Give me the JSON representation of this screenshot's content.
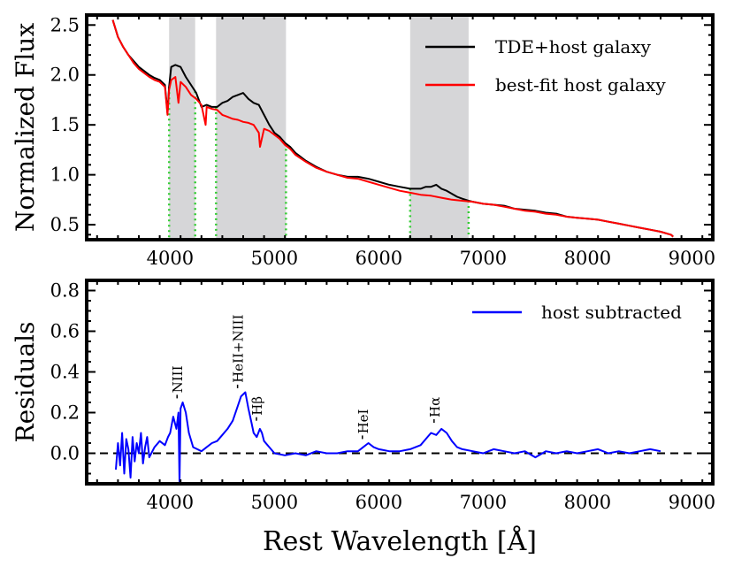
{
  "chart_data": [
    {
      "type": "line",
      "panel": "top",
      "title": "",
      "xlabel": "",
      "ylabel": "Normalized Flux",
      "xlim": [
        3200,
        9200
      ],
      "ylim": [
        0.35,
        2.6
      ],
      "xticks": [
        4000,
        5000,
        6000,
        7000,
        8000,
        9000
      ],
      "xtick_labels": [
        "4000",
        "5000",
        "6000",
        "7000",
        "8000",
        "9000"
      ],
      "yticks": [
        0.5,
        1.0,
        1.5,
        2.0,
        2.5
      ],
      "ytick_labels": [
        "0.5",
        "1.0",
        "1.5",
        "2.0",
        "2.5"
      ],
      "legend_position": "top-right",
      "shaded_regions": [
        {
          "x0": 3990,
          "x1": 4240
        },
        {
          "x0": 4440,
          "x1": 5110
        },
        {
          "x0": 6300,
          "x1": 6860
        }
      ],
      "series": [
        {
          "name": "TDE+host galaxy",
          "color": "#000000",
          "x": [
            3450,
            3500,
            3550,
            3600,
            3650,
            3700,
            3750,
            3800,
            3850,
            3900,
            3950,
            3975,
            3990,
            4010,
            4050,
            4100,
            4150,
            4200,
            4250,
            4300,
            4350,
            4400,
            4450,
            4500,
            4550,
            4600,
            4650,
            4700,
            4750,
            4800,
            4850,
            4900,
            4950,
            5000,
            5050,
            5100,
            5150,
            5200,
            5300,
            5400,
            5500,
            5600,
            5700,
            5800,
            5900,
            6000,
            6100,
            6200,
            6300,
            6400,
            6450,
            6500,
            6550,
            6600,
            6650,
            6700,
            6750,
            6800,
            6860,
            6900,
            7000,
            7100,
            7200,
            7300,
            7400,
            7500,
            7600,
            7700,
            7800,
            7900,
            8000,
            8100,
            8200,
            8300,
            8400,
            8500,
            8600,
            8700,
            8800,
            8820
          ],
          "y": [
            2.55,
            2.38,
            2.28,
            2.2,
            2.14,
            2.08,
            2.04,
            2.0,
            1.97,
            1.95,
            1.9,
            1.62,
            1.88,
            2.08,
            2.1,
            2.08,
            1.98,
            1.9,
            1.82,
            1.68,
            1.7,
            1.68,
            1.68,
            1.72,
            1.74,
            1.78,
            1.8,
            1.82,
            1.76,
            1.72,
            1.7,
            1.6,
            1.5,
            1.42,
            1.38,
            1.32,
            1.28,
            1.22,
            1.14,
            1.08,
            1.03,
            1.0,
            0.98,
            0.98,
            0.96,
            0.93,
            0.9,
            0.88,
            0.86,
            0.86,
            0.88,
            0.88,
            0.9,
            0.86,
            0.84,
            0.81,
            0.78,
            0.76,
            0.74,
            0.73,
            0.71,
            0.7,
            0.69,
            0.66,
            0.65,
            0.64,
            0.62,
            0.61,
            0.58,
            0.57,
            0.56,
            0.55,
            0.53,
            0.51,
            0.49,
            0.47,
            0.45,
            0.43,
            0.4,
            0.38
          ]
        },
        {
          "name": "best-fit host galaxy",
          "color": "#ff0000",
          "x": [
            3450,
            3500,
            3550,
            3600,
            3650,
            3700,
            3750,
            3800,
            3850,
            3900,
            3950,
            3975,
            3990,
            4010,
            4050,
            4080,
            4100,
            4150,
            4200,
            4250,
            4300,
            4340,
            4350,
            4400,
            4450,
            4500,
            4550,
            4600,
            4650,
            4700,
            4750,
            4800,
            4850,
            4861,
            4900,
            4950,
            5000,
            5050,
            5100,
            5150,
            5200,
            5300,
            5400,
            5500,
            5600,
            5700,
            5800,
            5900,
            6000,
            6100,
            6200,
            6300,
            6400,
            6500,
            6600,
            6700,
            6800,
            6900,
            7000,
            7100,
            7200,
            7300,
            7400,
            7500,
            7600,
            7700,
            7800,
            7900,
            8000,
            8100,
            8200,
            8300,
            8400,
            8500,
            8600,
            8700,
            8800,
            8820
          ],
          "y": [
            2.55,
            2.38,
            2.28,
            2.2,
            2.12,
            2.06,
            2.02,
            1.98,
            1.95,
            1.93,
            1.88,
            1.6,
            1.85,
            1.95,
            1.98,
            1.72,
            1.93,
            1.88,
            1.8,
            1.76,
            1.7,
            1.5,
            1.68,
            1.66,
            1.65,
            1.6,
            1.58,
            1.56,
            1.55,
            1.53,
            1.52,
            1.5,
            1.42,
            1.28,
            1.46,
            1.44,
            1.4,
            1.36,
            1.3,
            1.26,
            1.2,
            1.13,
            1.07,
            1.03,
            1.0,
            0.97,
            0.96,
            0.93,
            0.9,
            0.87,
            0.84,
            0.82,
            0.8,
            0.79,
            0.77,
            0.75,
            0.74,
            0.73,
            0.71,
            0.7,
            0.68,
            0.66,
            0.64,
            0.63,
            0.61,
            0.6,
            0.58,
            0.57,
            0.56,
            0.55,
            0.53,
            0.51,
            0.49,
            0.47,
            0.45,
            0.43,
            0.4,
            0.38
          ]
        }
      ]
    },
    {
      "type": "line",
      "panel": "bottom",
      "title": "",
      "xlabel": "Rest Wavelength [Å]",
      "ylabel": "Residuals",
      "xlim": [
        3200,
        9200
      ],
      "ylim": [
        -0.15,
        0.85
      ],
      "xticks": [
        4000,
        5000,
        6000,
        7000,
        8000,
        9000
      ],
      "xtick_labels": [
        "4000",
        "5000",
        "6000",
        "7000",
        "8000",
        "9000"
      ],
      "yticks": [
        0.0,
        0.2,
        0.4,
        0.6,
        0.8
      ],
      "ytick_labels": [
        "0.0",
        "0.2",
        "0.4",
        "0.6",
        "0.8"
      ],
      "legend_position": "top-right",
      "reference_line": {
        "y": 0.0,
        "style": "dashed"
      },
      "line_labels": [
        {
          "label": "NIII",
          "x": 4100,
          "y": 0.27
        },
        {
          "label": "HeII+NIII",
          "x": 4680,
          "y": 0.32
        },
        {
          "label": "Hβ",
          "x": 4861,
          "y": 0.16
        },
        {
          "label": "HeI",
          "x": 5876,
          "y": 0.07
        },
        {
          "label": "Hα",
          "x": 6563,
          "y": 0.15
        }
      ],
      "series": [
        {
          "name": "host subtracted",
          "color": "#0000ff",
          "x": [
            3480,
            3500,
            3520,
            3540,
            3560,
            3580,
            3600,
            3620,
            3640,
            3660,
            3680,
            3700,
            3720,
            3740,
            3760,
            3780,
            3800,
            3850,
            3900,
            3950,
            3980,
            4000,
            4030,
            4060,
            4080,
            4090,
            4100,
            4120,
            4150,
            4180,
            4220,
            4260,
            4300,
            4350,
            4400,
            4450,
            4500,
            4550,
            4600,
            4640,
            4680,
            4720,
            4750,
            4780,
            4800,
            4830,
            4860,
            4880,
            4900,
            4950,
            5000,
            5100,
            5200,
            5300,
            5400,
            5500,
            5600,
            5700,
            5800,
            5850,
            5900,
            5950,
            6000,
            6100,
            6200,
            6300,
            6400,
            6450,
            6500,
            6550,
            6600,
            6650,
            6700,
            6750,
            6800,
            6900,
            7000,
            7100,
            7200,
            7300,
            7400,
            7500,
            7600,
            7700,
            7800,
            7900,
            8000,
            8100,
            8200,
            8300,
            8400,
            8500,
            8600,
            8700
          ],
          "y": [
            -0.08,
            0.05,
            -0.06,
            0.1,
            -0.1,
            0.07,
            0.02,
            -0.12,
            0.08,
            -0.04,
            0.05,
            0.0,
            0.1,
            -0.05,
            0.03,
            0.08,
            -0.02,
            0.03,
            0.06,
            0.04,
            0.08,
            0.1,
            0.18,
            0.12,
            0.2,
            -0.15,
            0.22,
            0.25,
            0.2,
            0.1,
            0.03,
            0.02,
            0.01,
            0.03,
            0.05,
            0.06,
            0.09,
            0.12,
            0.16,
            0.22,
            0.28,
            0.3,
            0.22,
            0.15,
            0.1,
            0.08,
            0.12,
            0.1,
            0.06,
            0.03,
            0.0,
            -0.01,
            0.0,
            -0.01,
            0.01,
            0.0,
            0.0,
            0.01,
            0.01,
            0.03,
            0.05,
            0.03,
            0.02,
            0.01,
            0.01,
            0.02,
            0.04,
            0.07,
            0.1,
            0.09,
            0.12,
            0.1,
            0.06,
            0.03,
            0.02,
            0.01,
            0.0,
            0.02,
            0.01,
            0.0,
            0.01,
            -0.02,
            0.01,
            0.0,
            0.01,
            0.0,
            0.01,
            0.02,
            0.0,
            0.01,
            0.0,
            0.01,
            0.02,
            0.01
          ]
        }
      ]
    }
  ]
}
